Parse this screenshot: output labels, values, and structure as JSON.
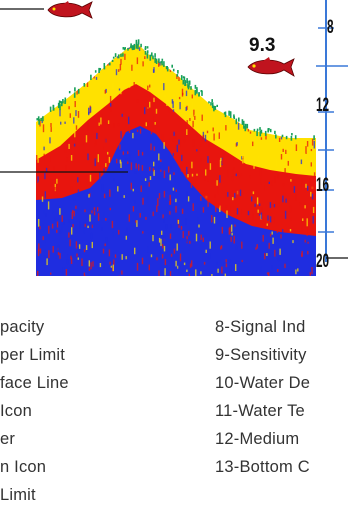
{
  "sonar": {
    "fish_depth_label": "9.3",
    "depth_scale": [
      "8",
      "12",
      "16",
      "20"
    ],
    "colors": {
      "signal_strong": "#e8150e",
      "signal_medium": "#ffe100",
      "signal_weak": "#1f2de0",
      "bottom_grass": "#18a05a",
      "scale_line": "#3a78d8",
      "fish_body": "#c0141e"
    },
    "icons": [
      "fish-icon",
      "fish-icon"
    ]
  },
  "legend": {
    "left_items": [
      "pacity",
      "per Limit",
      "face Line",
      " Icon",
      "er",
      "n Icon",
      "Limit"
    ],
    "right_items": [
      "8-Signal Ind",
      "9-Sensitivity",
      "10-Water De",
      "11-Water Te",
      "12-Medium",
      "13-Bottom C"
    ]
  }
}
